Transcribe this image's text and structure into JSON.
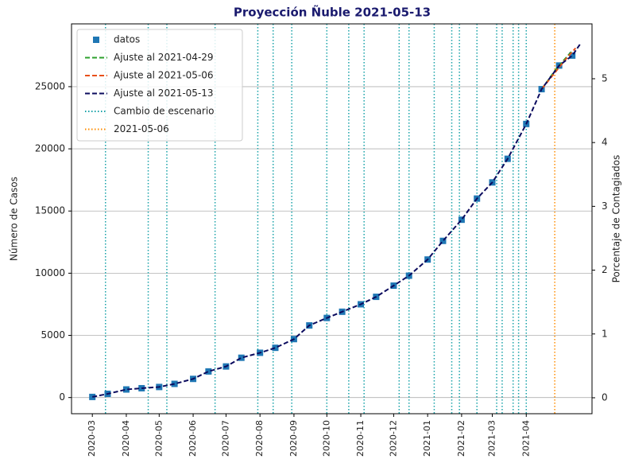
{
  "chart_data": {
    "type": "line",
    "title": "Proyección Ñuble 2021-05-13",
    "ylabel": "Número de Casos",
    "y2label": "Porcentaje de Contagiados",
    "xlim": [
      "2020-02-11",
      "2021-05-31"
    ],
    "xticks": [
      {
        "value": "2020-03-01",
        "label": "2020-03"
      },
      {
        "value": "2020-04-01",
        "label": "2020-04"
      },
      {
        "value": "2020-05-01",
        "label": "2020-05"
      },
      {
        "value": "2020-06-01",
        "label": "2020-06"
      },
      {
        "value": "2020-07-01",
        "label": "2020-07"
      },
      {
        "value": "2020-08-01",
        "label": "2020-08"
      },
      {
        "value": "2020-09-01",
        "label": "2020-09"
      },
      {
        "value": "2020-10-01",
        "label": "2020-10"
      },
      {
        "value": "2020-11-01",
        "label": "2020-11"
      },
      {
        "value": "2020-12-01",
        "label": "2020-12"
      },
      {
        "value": "2021-01-01",
        "label": "2021-01"
      },
      {
        "value": "2021-02-01",
        "label": "2021-02"
      },
      {
        "value": "2021-03-01",
        "label": "2021-03"
      },
      {
        "value": "2021-04-01",
        "label": "2021-04"
      }
    ],
    "ylim": [
      -1300,
      30050
    ],
    "yticks": [
      0,
      5000,
      10000,
      15000,
      20000,
      25000
    ],
    "y2lim": [
      -0.25,
      5.86
    ],
    "y2ticks": [
      0,
      1,
      2,
      3,
      4,
      5
    ],
    "grid": true,
    "legend": "upper left",
    "series": [
      {
        "name": "datos",
        "style": "marker",
        "color": "#1f77b4",
        "x": [
          "2020-03-01",
          "2020-03-15",
          "2020-04-01",
          "2020-04-15",
          "2020-05-01",
          "2020-05-15",
          "2020-06-01",
          "2020-06-15",
          "2020-07-01",
          "2020-07-15",
          "2020-08-01",
          "2020-08-15",
          "2020-09-01",
          "2020-09-15",
          "2020-10-01",
          "2020-10-15",
          "2020-11-01",
          "2020-11-15",
          "2020-12-01",
          "2020-12-15",
          "2021-01-01",
          "2021-01-15",
          "2021-02-01",
          "2021-02-15",
          "2021-03-01",
          "2021-03-15",
          "2021-04-01",
          "2021-04-15",
          "2021-05-01",
          "2021-05-13"
        ],
        "values": [
          50,
          300,
          650,
          750,
          850,
          1100,
          1500,
          2100,
          2500,
          3200,
          3600,
          4000,
          4700,
          5800,
          6400,
          6900,
          7500,
          8100,
          9000,
          9800,
          11100,
          12600,
          14300,
          16000,
          17300,
          19200,
          22000,
          24800,
          26700,
          27500
        ]
      },
      {
        "name": "Ajuste al 2021-04-29",
        "style": "dashed",
        "color": "#2ca02c",
        "x": [
          "2021-04-15",
          "2021-04-29",
          "2021-05-13"
        ],
        "values": [
          24800,
          26500,
          27900
        ]
      },
      {
        "name": "Ajuste al 2021-05-06",
        "style": "dashed",
        "color": "#e8501a",
        "x": [
          "2021-04-15",
          "2021-05-06",
          "2021-05-16"
        ],
        "values": [
          24800,
          27100,
          28100
        ]
      },
      {
        "name": "Ajuste al 2021-05-13",
        "style": "dashed",
        "color": "#0b0b5e",
        "x": [
          "2020-03-01",
          "2020-03-15",
          "2020-04-01",
          "2020-04-15",
          "2020-05-01",
          "2020-05-15",
          "2020-06-01",
          "2020-06-15",
          "2020-07-01",
          "2020-07-15",
          "2020-08-01",
          "2020-08-15",
          "2020-09-01",
          "2020-09-15",
          "2020-10-01",
          "2020-10-15",
          "2020-11-01",
          "2020-11-15",
          "2020-12-01",
          "2020-12-15",
          "2021-01-01",
          "2021-01-15",
          "2021-02-01",
          "2021-02-15",
          "2021-03-01",
          "2021-03-15",
          "2021-04-01",
          "2021-04-15",
          "2021-05-01",
          "2021-05-13",
          "2021-05-20"
        ],
        "values": [
          50,
          300,
          650,
          750,
          850,
          1100,
          1500,
          2100,
          2500,
          3200,
          3600,
          4000,
          4700,
          5800,
          6400,
          6900,
          7500,
          8100,
          9000,
          9800,
          11100,
          12600,
          14300,
          16000,
          17300,
          19200,
          22000,
          24800,
          26700,
          27500,
          28400
        ]
      }
    ],
    "vlines": [
      {
        "name": "Cambio de escenario",
        "color": "#17a2a8",
        "x": [
          "2020-03-13",
          "2020-04-21",
          "2020-05-08",
          "2020-06-21",
          "2020-07-30",
          "2020-08-13",
          "2020-08-30",
          "2020-10-01",
          "2020-10-21",
          "2020-11-04",
          "2020-12-06",
          "2020-12-15",
          "2021-01-07",
          "2021-01-23",
          "2021-01-30",
          "2021-02-15",
          "2021-03-05",
          "2021-03-10",
          "2021-03-20",
          "2021-03-25",
          "2021-04-01"
        ]
      },
      {
        "name": "2021-05-06",
        "color": "#ff8c00",
        "x": [
          "2021-04-27"
        ]
      }
    ]
  }
}
